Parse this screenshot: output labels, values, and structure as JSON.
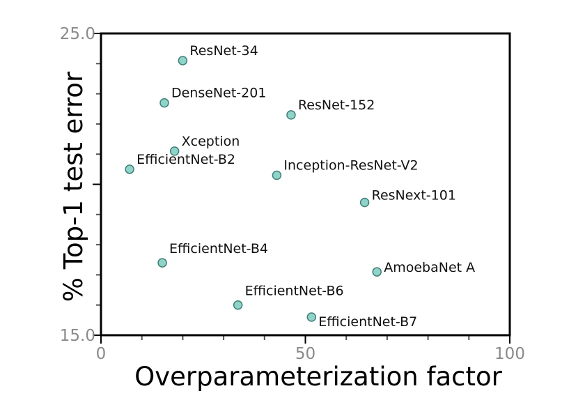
{
  "chart_data": {
    "type": "scatter",
    "xlabel": "Overparameterization factor",
    "ylabel": "% Top-1 test error",
    "xlim": [
      0,
      100
    ],
    "ylim": [
      15.0,
      25.0
    ],
    "x_ticks": [
      "0",
      "50",
      "100"
    ],
    "y_ticks": [
      "15.0",
      "25.0"
    ],
    "grid": false,
    "legend": "none",
    "point_color": "#8fd3c9",
    "point_edge_color": "#3f7f78",
    "points": [
      {
        "label": "ResNet-34",
        "x": 20.0,
        "y": 24.1
      },
      {
        "label": "DenseNet-201",
        "x": 15.5,
        "y": 22.7
      },
      {
        "label": "ResNet-152",
        "x": 46.5,
        "y": 22.3
      },
      {
        "label": "Xception",
        "x": 18.0,
        "y": 21.1
      },
      {
        "label": "EfficientNet-B2",
        "x": 7.0,
        "y": 20.5
      },
      {
        "label": "Inception-ResNet-V2",
        "x": 43.0,
        "y": 20.3
      },
      {
        "label": "ResNext-101",
        "x": 64.5,
        "y": 19.4
      },
      {
        "label": "EfficientNet-B4",
        "x": 15.0,
        "y": 17.4
      },
      {
        "label": "AmoebaNet A",
        "x": 67.5,
        "y": 17.1
      },
      {
        "label": "EfficientNet-B6",
        "x": 33.5,
        "y": 16.0
      },
      {
        "label": "EfficientNet-B7",
        "x": 51.5,
        "y": 15.6
      }
    ]
  }
}
